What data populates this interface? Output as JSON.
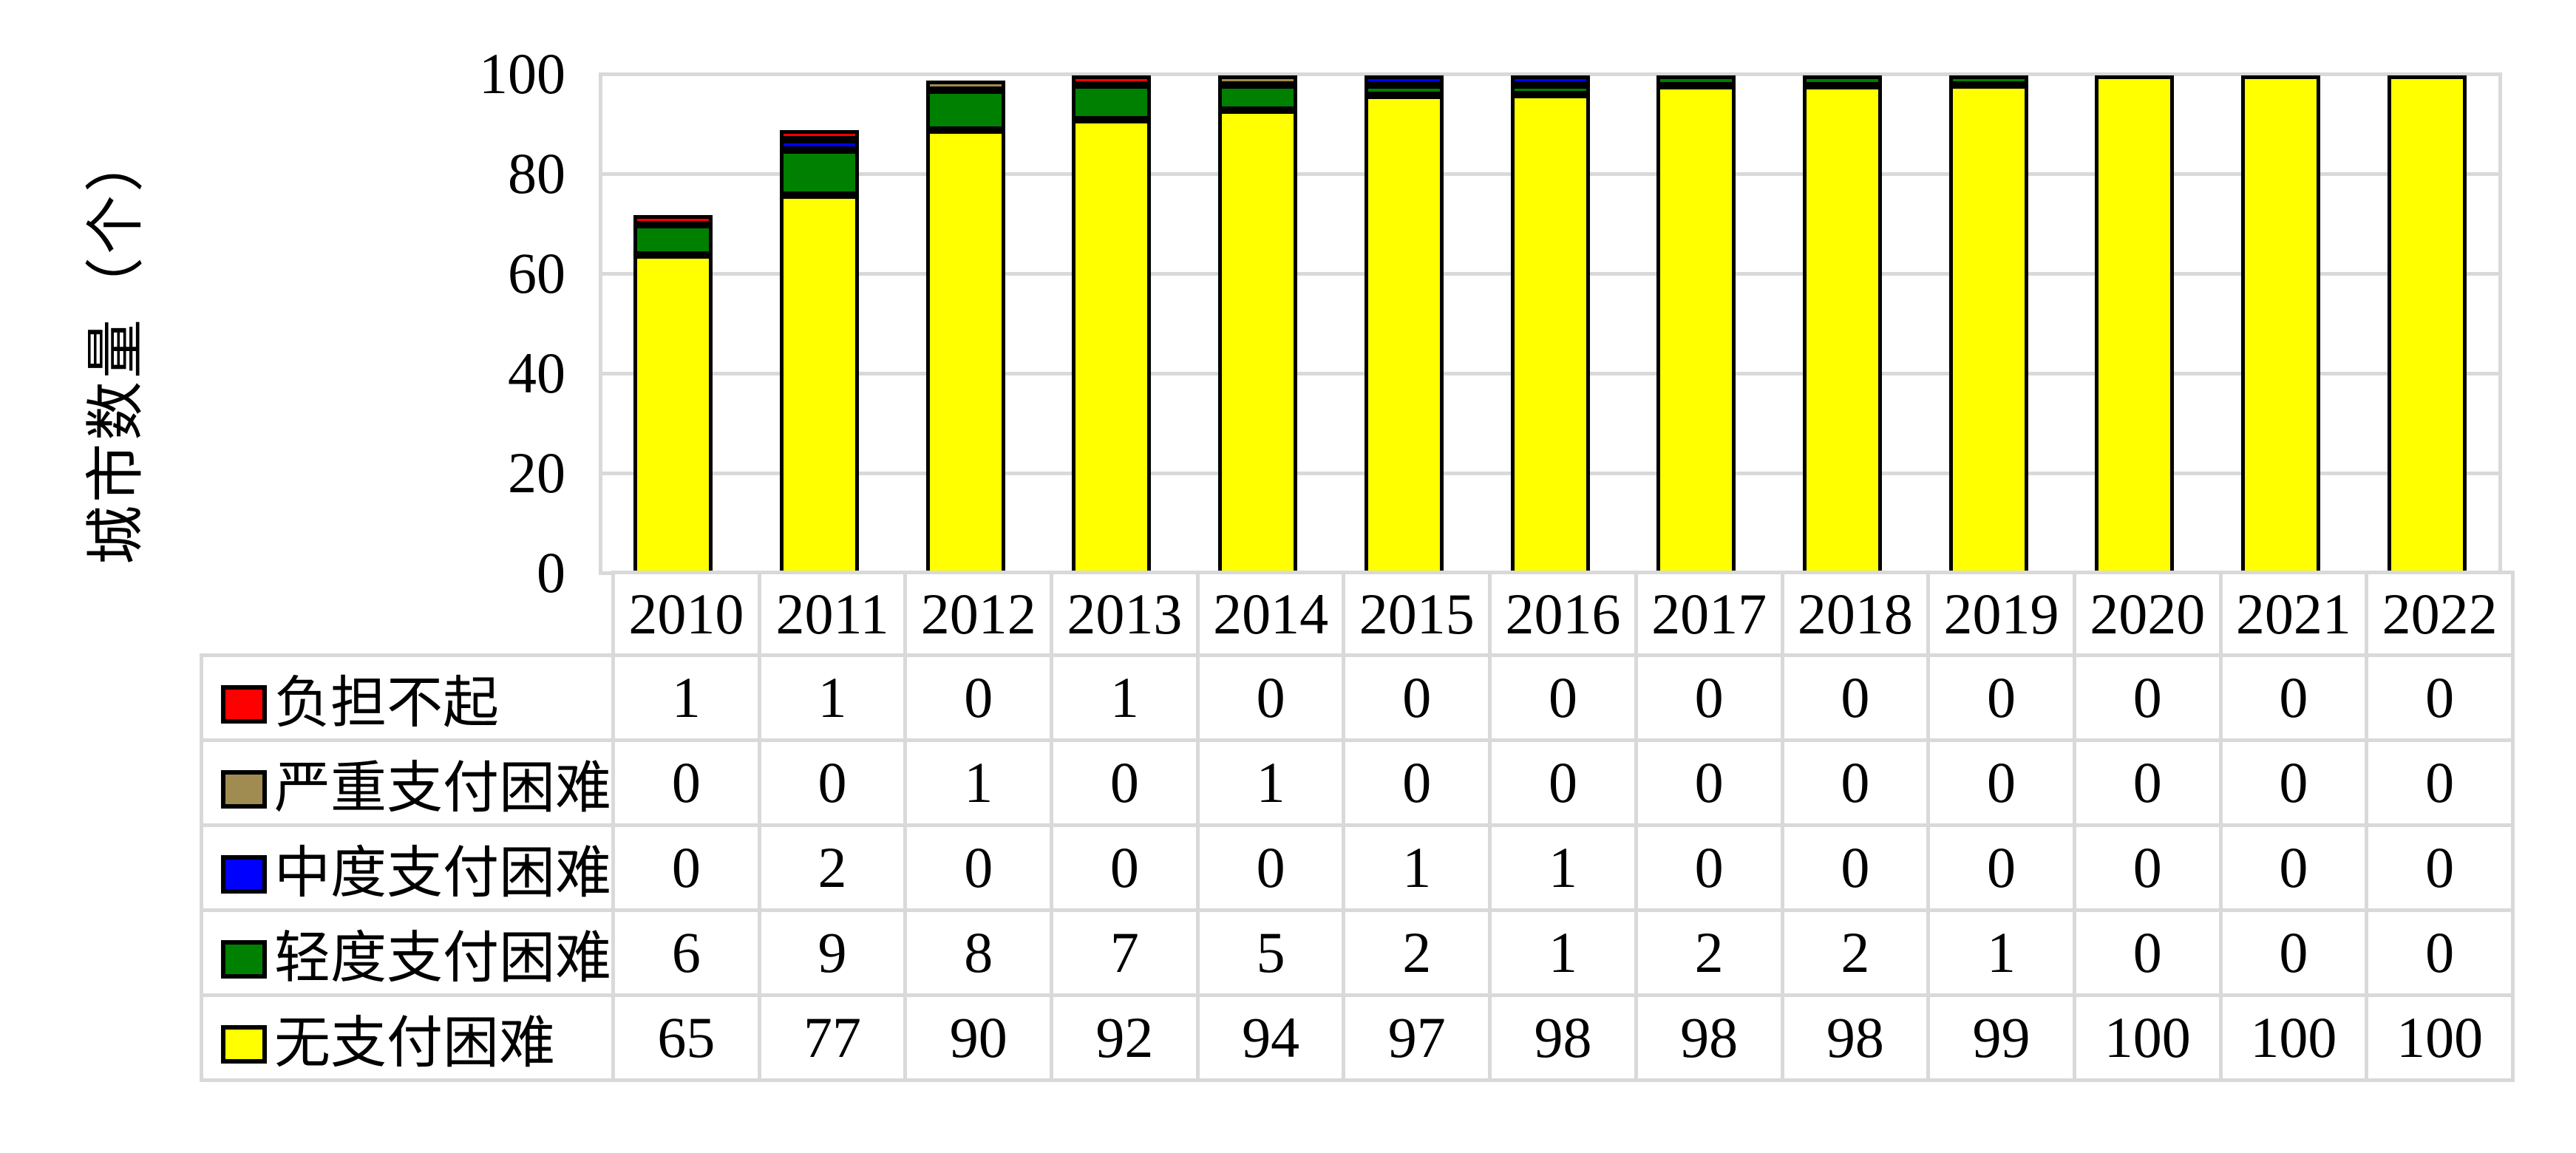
{
  "chart": {
    "y_axis_title": "城市数量（个）",
    "colors": {
      "grid": "#d9d9d9",
      "bar_border": "#000000",
      "background": "#ffffff",
      "unaffordable_red": "#ff0000",
      "severe_tan": "#a08c50",
      "moderate_blue": "#0000ff",
      "mild_green": "#008000",
      "none_yellow": "#ffff00"
    }
  },
  "chart_data": {
    "type": "bar",
    "stacked": true,
    "title": "",
    "xlabel": "",
    "ylabel": "城市数量（个）",
    "ylim": [
      0,
      100
    ],
    "yticks": [
      0,
      20,
      40,
      60,
      80,
      100
    ],
    "grid": "horizontal gridlines only",
    "legend_position": "left column of data table below chart",
    "categories": [
      "2010",
      "2011",
      "2012",
      "2013",
      "2014",
      "2015",
      "2016",
      "2017",
      "2018",
      "2019",
      "2020",
      "2021",
      "2022"
    ],
    "series": [
      {
        "id": "none",
        "name": "无支付困难",
        "color": "#ffff00",
        "stack_level": 1,
        "values": [
          65,
          77,
          90,
          92,
          94,
          97,
          98,
          98,
          98,
          99,
          100,
          100,
          100
        ]
      },
      {
        "id": "mild",
        "name": "轻度支付困难",
        "color": "#008000",
        "stack_level": 2,
        "values": [
          6,
          9,
          8,
          7,
          5,
          2,
          1,
          2,
          2,
          1,
          0,
          0,
          0
        ]
      },
      {
        "id": "moderate",
        "name": "中度支付困难",
        "color": "#0000ff",
        "stack_level": 3,
        "values": [
          0,
          2,
          0,
          0,
          0,
          1,
          1,
          0,
          0,
          0,
          0,
          0,
          0
        ]
      },
      {
        "id": "severe",
        "name": "严重支付困难",
        "color": "#a08c50",
        "stack_level": 4,
        "values": [
          0,
          0,
          1,
          0,
          1,
          0,
          0,
          0,
          0,
          0,
          0,
          0,
          0
        ]
      },
      {
        "id": "unaffordable",
        "name": "负担不起",
        "color": "#ff0000",
        "stack_level": 5,
        "values": [
          1,
          1,
          0,
          1,
          0,
          0,
          0,
          0,
          0,
          0,
          0,
          0,
          0
        ]
      }
    ]
  },
  "table": {
    "header_years": [
      "2010",
      "2011",
      "2012",
      "2013",
      "2014",
      "2015",
      "2016",
      "2017",
      "2018",
      "2019",
      "2020",
      "2021",
      "2022"
    ],
    "rows": [
      {
        "id": "unaffordable",
        "label": "负担不起",
        "color": "#ff0000",
        "values": [
          "1",
          "1",
          "0",
          "1",
          "0",
          "0",
          "0",
          "0",
          "0",
          "0",
          "0",
          "0",
          "0"
        ]
      },
      {
        "id": "severe",
        "label": "严重支付困难",
        "color": "#a08c50",
        "values": [
          "0",
          "0",
          "1",
          "0",
          "1",
          "0",
          "0",
          "0",
          "0",
          "0",
          "0",
          "0",
          "0"
        ]
      },
      {
        "id": "moderate",
        "label": "中度支付困难",
        "color": "#0000ff",
        "values": [
          "0",
          "2",
          "0",
          "0",
          "0",
          "1",
          "1",
          "0",
          "0",
          "0",
          "0",
          "0",
          "0"
        ]
      },
      {
        "id": "mild",
        "label": "轻度支付困难",
        "color": "#008000",
        "values": [
          "6",
          "9",
          "8",
          "7",
          "5",
          "2",
          "1",
          "2",
          "2",
          "1",
          "0",
          "0",
          "0"
        ]
      },
      {
        "id": "none",
        "label": "无支付困难",
        "color": "#ffff00",
        "values": [
          "65",
          "77",
          "90",
          "92",
          "94",
          "97",
          "98",
          "98",
          "98",
          "99",
          "100",
          "100",
          "100"
        ]
      }
    ]
  }
}
